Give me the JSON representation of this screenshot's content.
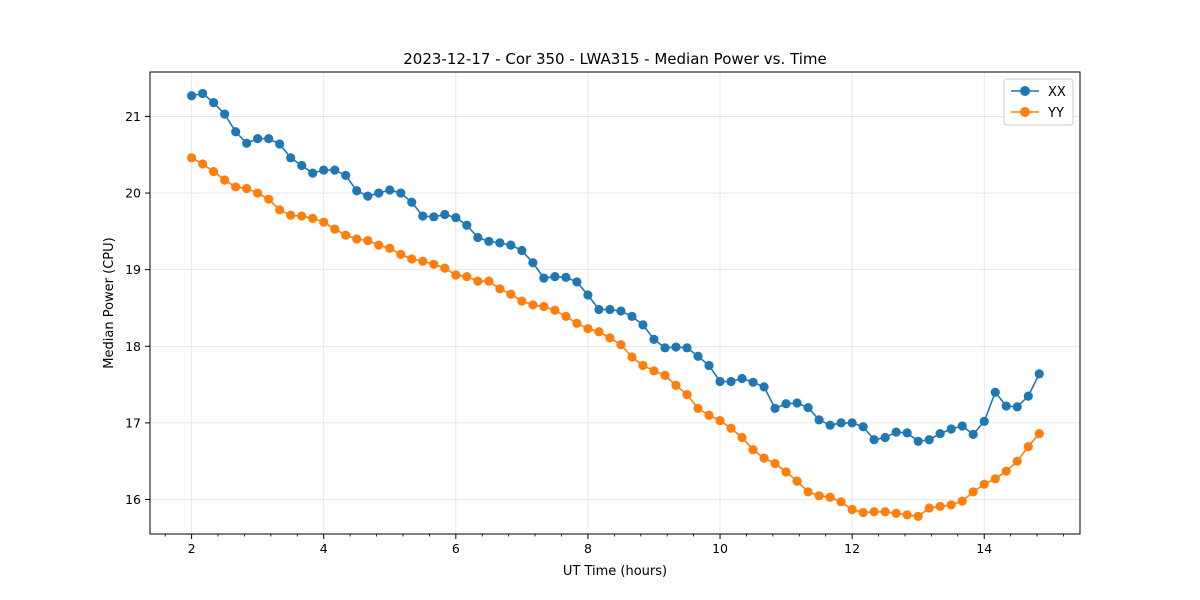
{
  "chart_data": {
    "type": "line",
    "title": "2023-12-17 - Cor 350 - LWA315 - Median Power vs. Time",
    "xlabel": "UT Time (hours)",
    "ylabel": "Median Power (CPU)",
    "xlim": [
      1.37,
      15.45
    ],
    "ylim": [
      15.55,
      21.58
    ],
    "xticks": [
      2,
      4,
      6,
      8,
      10,
      12,
      14
    ],
    "yticks": [
      16,
      17,
      18,
      19,
      20,
      21
    ],
    "x_minor_step": 0.4,
    "grid": true,
    "legend_position": "top-right",
    "x": [
      2.0,
      2.167,
      2.333,
      2.5,
      2.667,
      2.833,
      3.0,
      3.167,
      3.333,
      3.5,
      3.667,
      3.833,
      4.0,
      4.167,
      4.333,
      4.5,
      4.667,
      4.833,
      5.0,
      5.167,
      5.333,
      5.5,
      5.667,
      5.833,
      6.0,
      6.167,
      6.333,
      6.5,
      6.667,
      6.833,
      7.0,
      7.167,
      7.333,
      7.5,
      7.667,
      7.833,
      8.0,
      8.167,
      8.333,
      8.5,
      8.667,
      8.833,
      9.0,
      9.167,
      9.333,
      9.5,
      9.667,
      9.833,
      10.0,
      10.167,
      10.333,
      10.5,
      10.667,
      10.833,
      11.0,
      11.167,
      11.333,
      11.5,
      11.667,
      11.833,
      12.0,
      12.167,
      12.333,
      12.5,
      12.667,
      12.833,
      13.0,
      13.167,
      13.333,
      13.5,
      13.667,
      13.833,
      14.0,
      14.167,
      14.333,
      14.5,
      14.667,
      14.833
    ],
    "series": [
      {
        "name": "XX",
        "color": "#1f77b4",
        "values": [
          21.27,
          21.3,
          21.18,
          21.03,
          20.8,
          20.65,
          20.71,
          20.71,
          20.64,
          20.46,
          20.36,
          20.26,
          20.3,
          20.3,
          20.23,
          20.03,
          19.96,
          20.0,
          20.04,
          20.0,
          19.88,
          19.7,
          19.69,
          19.72,
          19.68,
          19.58,
          19.42,
          19.37,
          19.35,
          19.32,
          19.25,
          19.09,
          18.89,
          18.91,
          18.9,
          18.84,
          18.67,
          18.48,
          18.48,
          18.46,
          18.39,
          18.28,
          18.09,
          17.98,
          17.99,
          17.98,
          17.87,
          17.75,
          17.54,
          17.54,
          17.58,
          17.53,
          17.47,
          17.19,
          17.25,
          17.26,
          17.2,
          17.04,
          16.97,
          17.0,
          17.0,
          16.95,
          16.78,
          16.81,
          16.88,
          16.87,
          16.76,
          16.78,
          16.86,
          16.92,
          16.96,
          16.85,
          17.02,
          17.4,
          17.22,
          17.21,
          17.35,
          17.64
        ]
      },
      {
        "name": "YY",
        "color": "#ff7f0e",
        "values": [
          20.46,
          20.38,
          20.28,
          20.17,
          20.08,
          20.06,
          20.0,
          19.92,
          19.78,
          19.71,
          19.7,
          19.67,
          19.62,
          19.53,
          19.45,
          19.4,
          19.38,
          19.32,
          19.28,
          19.2,
          19.14,
          19.11,
          19.07,
          19.02,
          18.93,
          18.91,
          18.85,
          18.85,
          18.75,
          18.68,
          18.59,
          18.54,
          18.52,
          18.47,
          18.39,
          18.3,
          18.23,
          18.19,
          18.11,
          18.02,
          17.86,
          17.75,
          17.68,
          17.62,
          17.49,
          17.37,
          17.19,
          17.1,
          17.03,
          16.93,
          16.81,
          16.65,
          16.54,
          16.47,
          16.36,
          16.24,
          16.1,
          16.05,
          16.03,
          15.97,
          15.87,
          15.83,
          15.84,
          15.84,
          15.82,
          15.8,
          15.78,
          15.89,
          15.91,
          15.93,
          15.98,
          16.1,
          16.2,
          16.27,
          16.37,
          16.5,
          16.69,
          16.86
        ]
      }
    ]
  }
}
